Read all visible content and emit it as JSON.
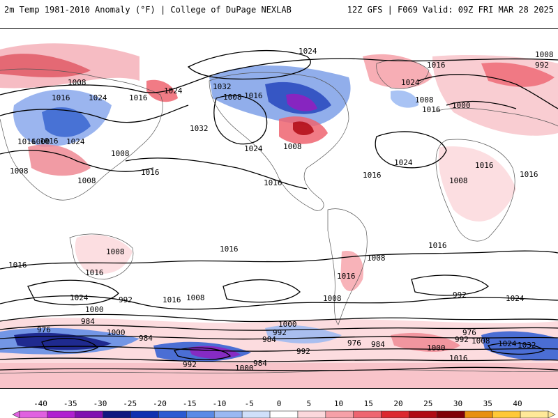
{
  "header": {
    "title_left": "2m Temp 1981-2010 Anomaly (°F) | College of DuPage NEXLAB",
    "title_right": "12Z GFS | F069 Valid: 09Z FRI MAR 28 2025"
  },
  "map": {
    "projection": "equirectangular-global",
    "contour_variable": "mslp",
    "contour_labels": [
      {
        "text": "1024"
      },
      {
        "text": "1008"
      },
      {
        "text": "992"
      },
      {
        "text": "1016"
      },
      {
        "text": "1008"
      },
      {
        "text": "1016"
      },
      {
        "text": "1024"
      },
      {
        "text": "1016"
      },
      {
        "text": "1024"
      },
      {
        "text": "1032"
      },
      {
        "text": "1008"
      },
      {
        "text": "1016"
      },
      {
        "text": "1024"
      },
      {
        "text": "1008"
      },
      {
        "text": "1016"
      },
      {
        "text": "1000"
      },
      {
        "text": "1016"
      },
      {
        "text": "1016"
      },
      {
        "text": "1000"
      },
      {
        "text": "1024"
      },
      {
        "text": "1008"
      },
      {
        "text": "1008"
      },
      {
        "text": "1016"
      },
      {
        "text": "1032"
      },
      {
        "text": "1008"
      },
      {
        "text": "1024"
      },
      {
        "text": "1024"
      },
      {
        "text": "1008"
      },
      {
        "text": "1016"
      },
      {
        "text": "1016"
      },
      {
        "text": "1016"
      },
      {
        "text": "1016"
      },
      {
        "text": "1008"
      },
      {
        "text": "1008"
      },
      {
        "text": "1016"
      },
      {
        "text": "1016"
      },
      {
        "text": "1016"
      },
      {
        "text": "1016"
      },
      {
        "text": "1024"
      },
      {
        "text": "992"
      },
      {
        "text": "1016"
      },
      {
        "text": "1008"
      },
      {
        "text": "1000"
      },
      {
        "text": "984"
      },
      {
        "text": "1016"
      },
      {
        "text": "1008"
      },
      {
        "text": "1008"
      },
      {
        "text": "1000"
      },
      {
        "text": "992"
      },
      {
        "text": "1024"
      },
      {
        "text": "992"
      },
      {
        "text": "976"
      },
      {
        "text": "1000"
      },
      {
        "text": "984"
      },
      {
        "text": "984"
      },
      {
        "text": "992"
      },
      {
        "text": "976"
      },
      {
        "text": "984"
      },
      {
        "text": "976"
      },
      {
        "text": "992"
      },
      {
        "text": "1008"
      },
      {
        "text": "1024"
      },
      {
        "text": "1032"
      },
      {
        "text": "1000"
      },
      {
        "text": "992"
      },
      {
        "text": "984"
      },
      {
        "text": "1000"
      },
      {
        "text": "1016"
      }
    ]
  },
  "colorbar": {
    "title": "",
    "ticks": [
      "-40",
      "-35",
      "-30",
      "-25",
      "-20",
      "-15",
      "-10",
      "-5",
      "0",
      "5",
      "10",
      "15",
      "20",
      "25",
      "30",
      "35",
      "40"
    ],
    "colors": [
      "#e060e0",
      "#b020d0",
      "#8010b0",
      "#101880",
      "#1030b0",
      "#2c5ad2",
      "#5a8ae6",
      "#9ab8f2",
      "#d0e0fa",
      "#ffffff",
      "#fcd8dc",
      "#f6a0a8",
      "#ee6470",
      "#dc2830",
      "#b00a14",
      "#800008",
      "#e89010",
      "#ffc838",
      "#ffe898"
    ]
  }
}
